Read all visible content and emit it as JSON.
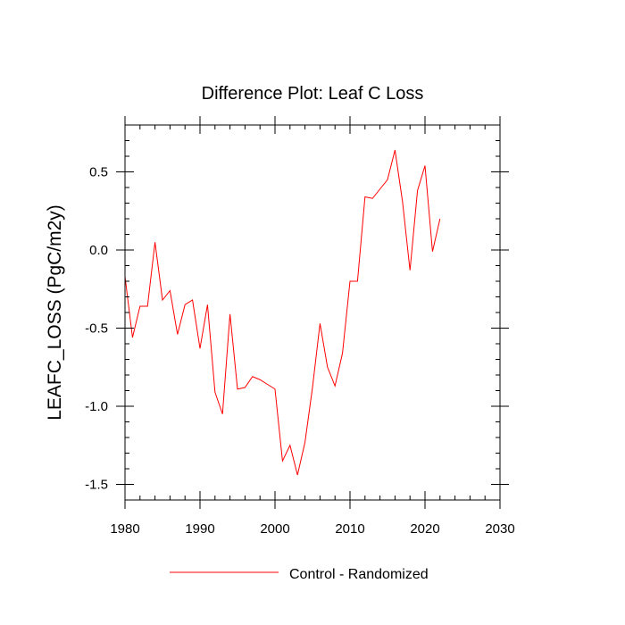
{
  "chart_data": {
    "type": "line",
    "title": "Difference Plot: Leaf C Loss",
    "xlabel": "",
    "ylabel": "LEAFC_LOSS  (PgC/m2y)",
    "xlim": [
      1980,
      2030
    ],
    "ylim": [
      -1.6,
      0.8
    ],
    "x_ticks": [
      1980,
      1990,
      2000,
      2010,
      2020,
      2030
    ],
    "x_tick_labels": [
      "1980",
      "1990",
      "2000",
      "2010",
      "2020",
      "2030"
    ],
    "y_ticks": [
      0.5,
      0.0,
      -0.5,
      -1.0,
      -1.5
    ],
    "y_tick_labels": [
      "0.5",
      "0.0",
      "-0.5",
      "-1.0",
      "-1.5"
    ],
    "legend_position": "bottom-center",
    "series": [
      {
        "name": "Control - Randomized",
        "color": "#ff0000",
        "x": [
          1980,
          1981,
          1982,
          1983,
          1984,
          1985,
          1986,
          1987,
          1988,
          1989,
          1990,
          1991,
          1992,
          1993,
          1994,
          1995,
          1996,
          1997,
          1998,
          1999,
          2000,
          2001,
          2002,
          2003,
          2004,
          2005,
          2006,
          2007,
          2008,
          2009,
          2010,
          2011,
          2012,
          2013,
          2014,
          2015,
          2016,
          2017,
          2018,
          2019,
          2020,
          2021,
          2022
        ],
        "values": [
          -0.17,
          -0.56,
          -0.36,
          -0.36,
          0.05,
          -0.32,
          -0.26,
          -0.54,
          -0.35,
          -0.32,
          -0.63,
          -0.35,
          -0.91,
          -1.05,
          -0.41,
          -0.89,
          -0.88,
          -0.81,
          -0.83,
          -0.86,
          -0.89,
          -1.35,
          -1.25,
          -1.44,
          -1.23,
          -0.88,
          -0.47,
          -0.75,
          -0.87,
          -0.66,
          -0.2,
          -0.2,
          0.34,
          0.33,
          0.39,
          0.45,
          0.64,
          0.31,
          -0.13,
          0.38,
          0.54,
          -0.01,
          0.2
        ]
      }
    ]
  }
}
